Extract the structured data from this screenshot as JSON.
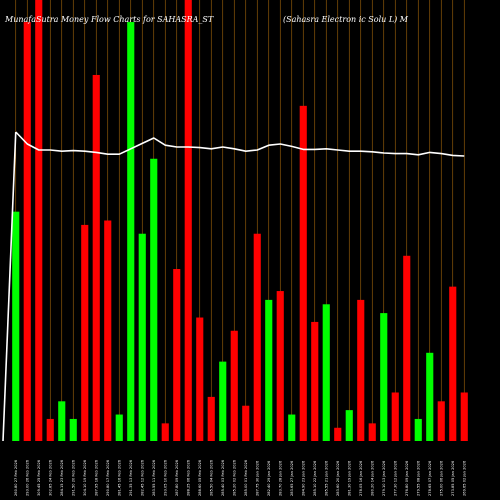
{
  "chart_data": {
    "type": "bar",
    "title": "MunafaSutra  Money Flow  Charts for SAHASRA_ST",
    "subtitle": "(Sahasra  Electron                    ic  Solu   L) M",
    "colors": {
      "background": "#000000",
      "up": "#00ff00",
      "down": "#ff0000",
      "grid": "#c07a10",
      "line": "#ffffff"
    },
    "categories": [
      "260.80 27 Feb 2026",
      "293.00 26 Feb 2026",
      "309.45 25 Feb 2026",
      "302.85 24 Feb 2026",
      "284.15 23 Feb 2026",
      "291.50 20 Feb 2026",
      "304.10 19 Feb 2026",
      "287.95 18 Feb 2026",
      "290.80 17 Feb 2026",
      "281.45 16 Feb 2026",
      "291.35 13 Feb 2026",
      "282.45 12 Feb 2026",
      "283.55 11 Feb 2026",
      "293.05 10 Feb 2026",
      "287.80 09 Feb 2026",
      "288.25 06 Feb 2026",
      "288.60 05 Feb 2026",
      "285.50 04 Feb 2026",
      "285.40 03 Feb 2026",
      "285.20 02 Feb 2026",
      "285.00 01 Feb 2026",
      "287.75 30 Jan 2026",
      "282.40 29 Jan 2026",
      "283.70 28 Jan 2026",
      "283.65 27 Jan 2026",
      "284.90 23 Jan 2026",
      "285.10 22 Jan 2026",
      "285.55 21 Jan 2026",
      "283.60 20 Jan 2026",
      "281.30 19 Jan 2026",
      "278.05 16 Jan 2026",
      "280.20 14 Jan 2026",
      "279.10 13 Jan 2026",
      "277.30 12 Jan 2026",
      "276.80 09 Jan 2026",
      "279.55 08 Jan 2026",
      "278.65 07 Jan 2026",
      "275.00 06 Jan 2026",
      "273.85 05 Jan 2026",
      "269.65 02 Jan 2026"
    ],
    "volume_directions": [
      "up",
      "down",
      "down",
      "down",
      "up",
      "up",
      "down",
      "down",
      "down",
      "up",
      "up",
      "up",
      "up",
      "down",
      "down",
      "down",
      "down",
      "down",
      "up",
      "down",
      "down",
      "down",
      "up",
      "down",
      "up",
      "down",
      "down",
      "up",
      "down",
      "up",
      "down",
      "down",
      "up",
      "down",
      "down",
      "up",
      "up",
      "down",
      "down",
      "down"
    ],
    "volume_values": [
      52,
      95,
      100,
      5,
      9,
      5,
      49,
      83,
      50,
      6,
      95,
      47,
      64,
      4,
      39,
      100,
      28,
      10,
      18,
      25,
      8,
      47,
      32,
      34,
      6,
      76,
      27,
      31,
      3,
      7,
      32,
      4,
      29,
      11,
      42,
      5,
      20,
      9,
      35,
      11
    ],
    "price_line": [
      100,
      80,
      70,
      70,
      68,
      69,
      68,
      66,
      63,
      63,
      72,
      81,
      90,
      78,
      75,
      75,
      74,
      72,
      75,
      72,
      68,
      70,
      78,
      80,
      76,
      71,
      71,
      72,
      70,
      68,
      68,
      67,
      65,
      64,
      64,
      62,
      66,
      64,
      61,
      60
    ],
    "volume_ylim": [
      0,
      100
    ],
    "price_ylim": [
      0,
      100
    ],
    "grid": true,
    "legend": "none"
  }
}
